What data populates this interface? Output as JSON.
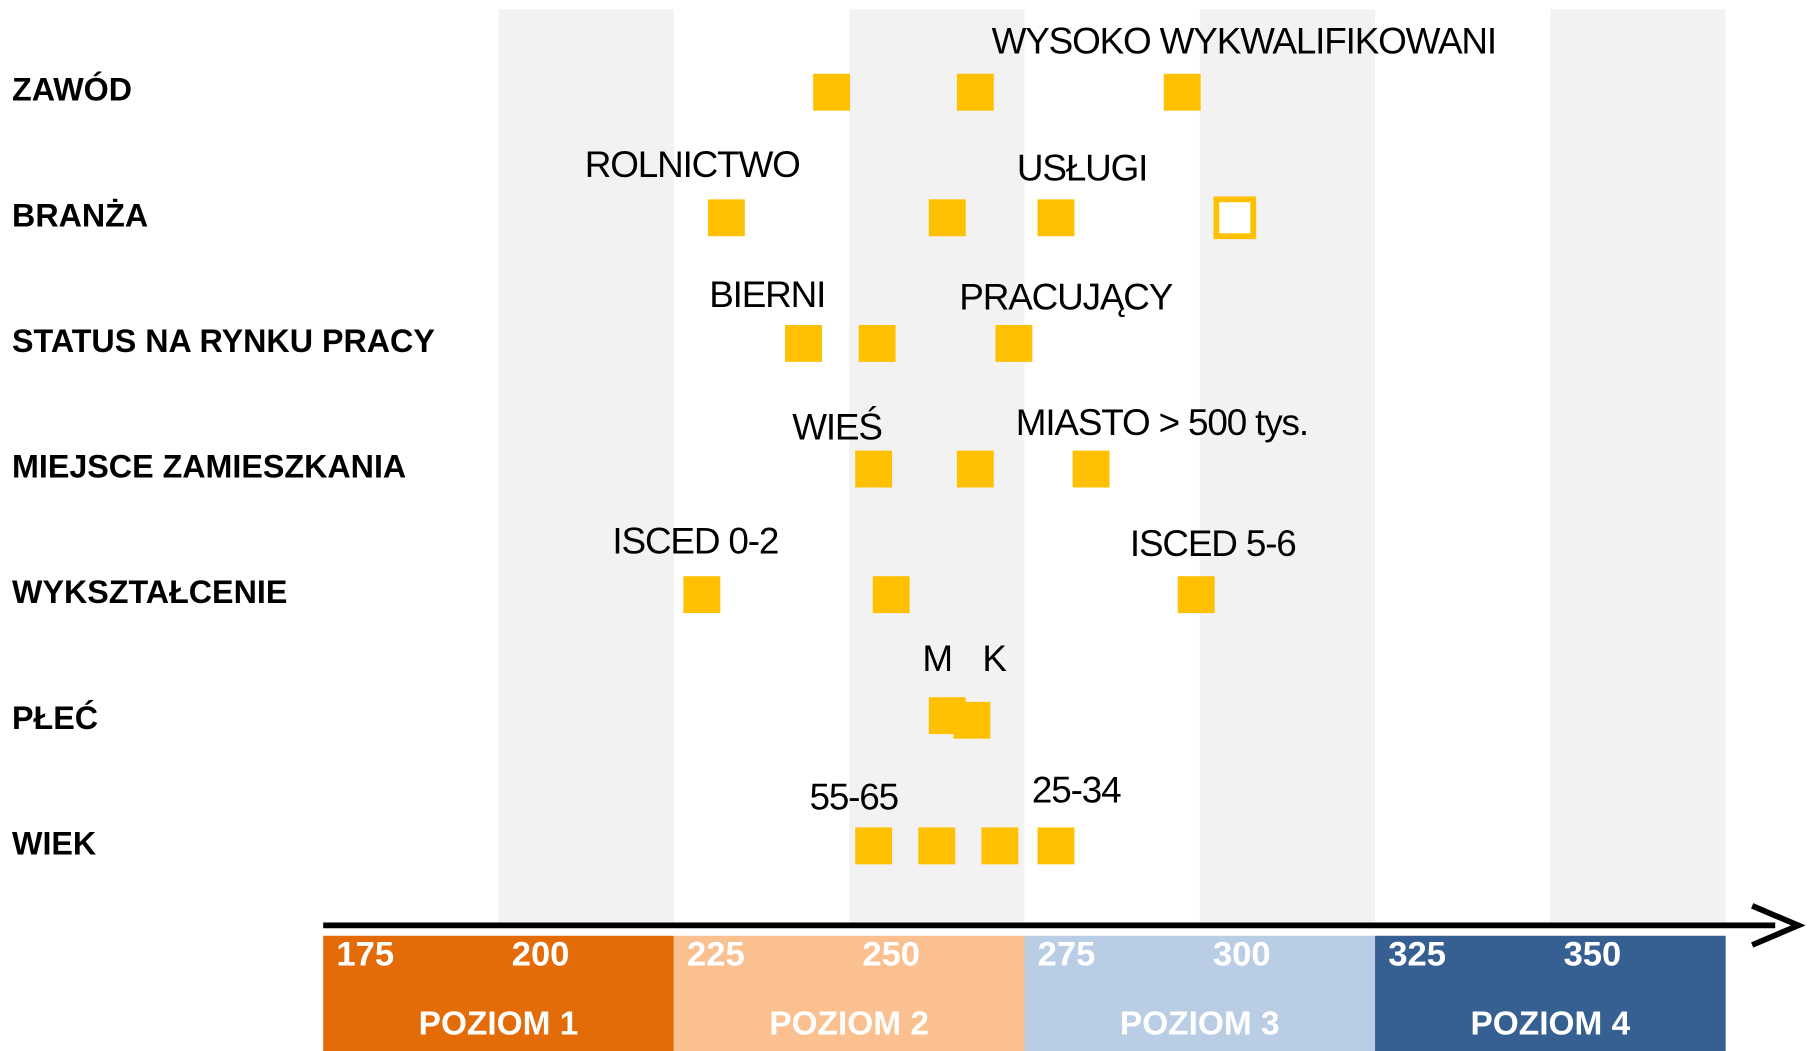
{
  "chart_data": {
    "type": "dot",
    "xlim": [
      169,
      369
    ],
    "xticks": [
      175,
      200,
      225,
      250,
      275,
      300,
      325,
      350
    ],
    "bands": [
      [
        194,
        219
      ],
      [
        244,
        269
      ],
      [
        294,
        319
      ],
      [
        344,
        369
      ]
    ],
    "levels": [
      {
        "name": "POZIOM 1",
        "range": [
          169,
          219
        ],
        "color": "#e36c09"
      },
      {
        "name": "POZIOM 2",
        "range": [
          219,
          269
        ],
        "color": "#fac090"
      },
      {
        "name": "POZIOM 3",
        "range": [
          269,
          319
        ],
        "color": "#b9cde5"
      },
      {
        "name": "POZIOM 4",
        "range": [
          319,
          369
        ],
        "color": "#376092"
      }
    ],
    "marker_color": "#ffc000",
    "series": [
      {
        "name": "ZAWÓD",
        "values": [
          241.5,
          262,
          291.5
        ],
        "filled": [
          true,
          true,
          true
        ],
        "annotations": [
          "WYSOKO WYKWALIFIKOWANI"
        ]
      },
      {
        "name": "BRANŻA",
        "values": [
          226.5,
          258,
          273.5,
          299
        ],
        "filled": [
          true,
          true,
          true,
          false
        ],
        "annotations": [
          "ROLNICTWO",
          "USŁUGI"
        ]
      },
      {
        "name": "STATUS NA RYNKU PRACY",
        "values": [
          237.5,
          248,
          267.5
        ],
        "filled": [
          true,
          true,
          true
        ],
        "annotations": [
          "BIERNI",
          "PRACUJĄCY"
        ]
      },
      {
        "name": "MIEJSCE ZAMIESZKANIA",
        "values": [
          247.5,
          262,
          278.5
        ],
        "filled": [
          true,
          true,
          true
        ],
        "annotations": [
          "WIEŚ",
          "MIASTO > 500 tys."
        ]
      },
      {
        "name": "WYKSZTAŁCENIE",
        "values": [
          223,
          250,
          293.5
        ],
        "filled": [
          true,
          true,
          true
        ],
        "annotations": [
          "ISCED 0-2",
          "ISCED 5-6"
        ]
      },
      {
        "name": "PŁEĆ",
        "values": [
          258,
          261.5
        ],
        "filled": [
          true,
          true
        ],
        "annotations": [
          "M",
          "K"
        ]
      },
      {
        "name": "WIEK",
        "values": [
          247.5,
          256.5,
          265.5,
          273.5
        ],
        "filled": [
          true,
          true,
          true,
          true
        ],
        "annotations": [
          "55-65",
          "25-34"
        ]
      }
    ]
  }
}
